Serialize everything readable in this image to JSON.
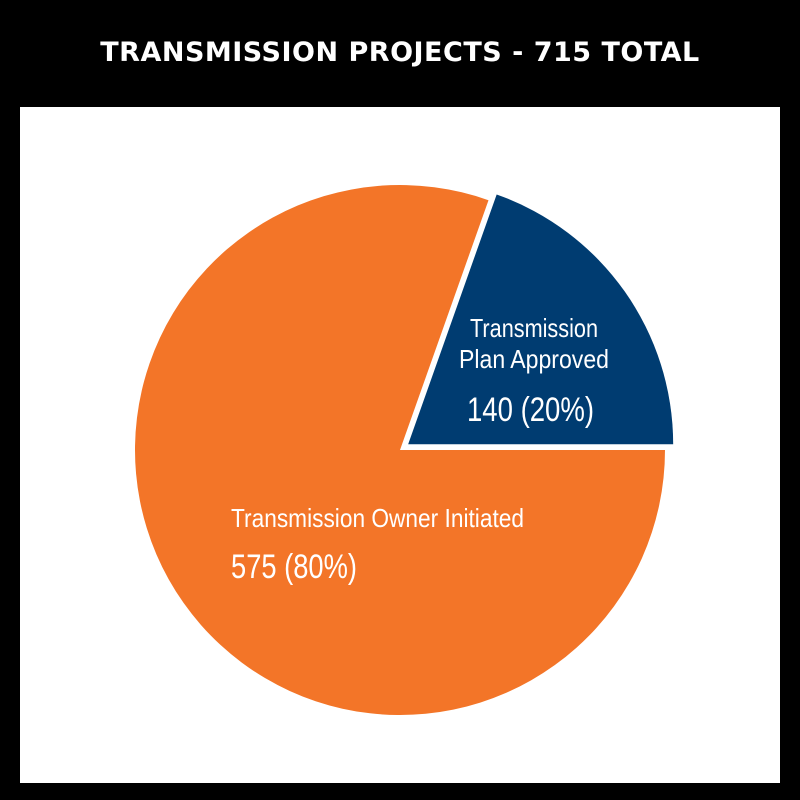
{
  "title": "TRANSMISSION PROJECTS - 715 TOTAL",
  "colors": {
    "background": "#000000",
    "panel": "#ffffff",
    "orange": "#f37528",
    "navy": "#003c71",
    "label_text": "#ffffff"
  },
  "chart_data": {
    "type": "pie",
    "title": "TRANSMISSION PROJECTS - 715 TOTAL",
    "total": 715,
    "slices": [
      {
        "label_lines": [
          "Transmission",
          "Plan Approved"
        ],
        "value": 140,
        "percent": 20,
        "value_text": "140 (20%)",
        "color": "#003c71",
        "exploded": true
      },
      {
        "label_lines": [
          "Transmission Owner Initiated"
        ],
        "value": 575,
        "percent": 80,
        "value_text": "575 (80%)",
        "color": "#f37528",
        "exploded": false
      }
    ]
  }
}
